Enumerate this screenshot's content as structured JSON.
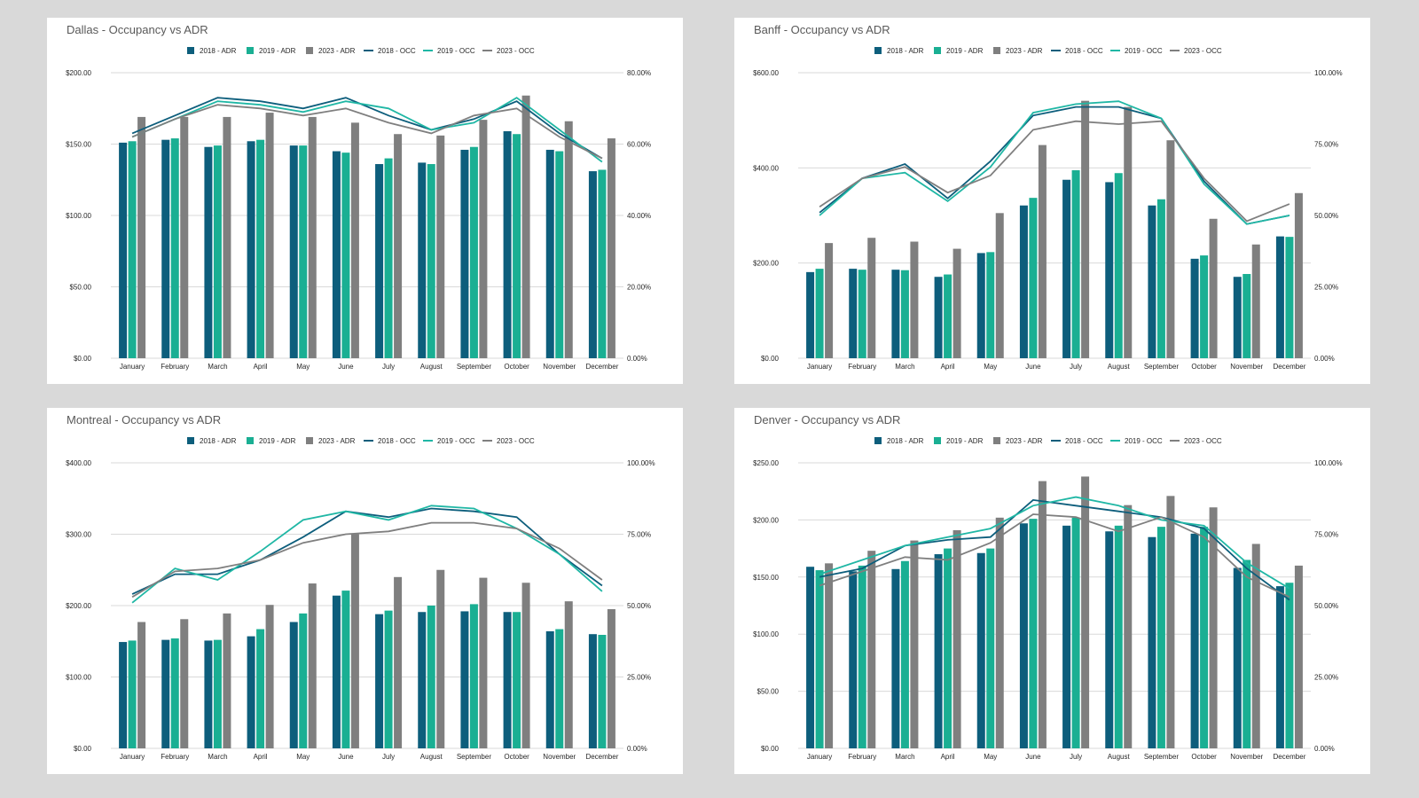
{
  "colors": {
    "adr_2018": "#0d5e7c",
    "adr_2019": "#1aaf93",
    "adr_2023": "#7f7f7f",
    "occ_2018": "#0d5e7c",
    "occ_2019": "#20b7a5",
    "occ_2023": "#7f7f7f",
    "gridline": "#d9d9d9"
  },
  "chart_data": [
    {
      "type": "bar",
      "title": "Dallas - Occupancy vs ADR",
      "categories": [
        "January",
        "February",
        "March",
        "April",
        "May",
        "June",
        "July",
        "August",
        "September",
        "October",
        "November",
        "December"
      ],
      "ylim": [
        0,
        200
      ],
      "y_ticks": [
        "$0.00",
        "$50.00",
        "$100.00",
        "$150.00",
        "$200.00"
      ],
      "y2lim": [
        0,
        80
      ],
      "y2_ticks": [
        "0.00%",
        "20.00%",
        "40.00%",
        "60.00%",
        "80.00%"
      ],
      "legend_position": "top",
      "grid": true,
      "series": [
        {
          "name": "2018 - ADR",
          "kind": "bar",
          "axis": "left",
          "values": [
            151,
            153,
            148,
            152,
            149,
            145,
            136,
            137,
            146,
            159,
            146,
            131
          ]
        },
        {
          "name": "2019 - ADR",
          "kind": "bar",
          "axis": "left",
          "values": [
            152,
            154,
            149,
            153,
            149,
            144,
            140,
            136,
            148,
            157,
            145,
            132
          ]
        },
        {
          "name": "2023 - ADR",
          "kind": "bar",
          "axis": "left",
          "values": [
            169,
            169,
            169,
            172,
            169,
            165,
            157,
            156,
            167,
            184,
            166,
            154
          ]
        },
        {
          "name": "2018 - OCC",
          "kind": "line",
          "axis": "right",
          "values": [
            63,
            68,
            73,
            72,
            70,
            73,
            68,
            64,
            67,
            72,
            63,
            56
          ]
        },
        {
          "name": "2019 - OCC",
          "kind": "line",
          "axis": "right",
          "values": [
            62,
            67,
            72,
            71,
            69,
            72,
            70,
            64,
            66,
            73,
            64,
            55
          ]
        },
        {
          "name": "2023 - OCC",
          "kind": "line",
          "axis": "right",
          "values": [
            62,
            67,
            71,
            70,
            68,
            70,
            66,
            63,
            68,
            70,
            62,
            56
          ]
        }
      ]
    },
    {
      "type": "bar",
      "title": "Banff - Occupancy vs ADR",
      "categories": [
        "January",
        "February",
        "March",
        "April",
        "May",
        "June",
        "July",
        "August",
        "September",
        "October",
        "November",
        "December"
      ],
      "ylim": [
        0,
        600
      ],
      "y_ticks": [
        "$0.00",
        "$200.00",
        "$400.00",
        "$600.00"
      ],
      "y2lim": [
        0,
        100
      ],
      "y2_ticks": [
        "0.00%",
        "25.00%",
        "50.00%",
        "75.00%",
        "100.00%"
      ],
      "legend_position": "top",
      "grid": true,
      "series": [
        {
          "name": "2018 - ADR",
          "kind": "bar",
          "axis": "left",
          "values": [
            181,
            188,
            186,
            171,
            221,
            321,
            375,
            370,
            321,
            209,
            171,
            256
          ]
        },
        {
          "name": "2019 - ADR",
          "kind": "bar",
          "axis": "left",
          "values": [
            188,
            186,
            185,
            176,
            223,
            337,
            395,
            389,
            334,
            216,
            177,
            255
          ]
        },
        {
          "name": "2023 - ADR",
          "kind": "bar",
          "axis": "left",
          "values": [
            242,
            253,
            245,
            230,
            305,
            448,
            541,
            528,
            458,
            293,
            239,
            347
          ]
        },
        {
          "name": "2018 - OCC",
          "kind": "line",
          "axis": "right",
          "values": [
            51,
            63,
            68,
            56,
            69,
            85,
            88,
            88,
            84,
            62,
            47,
            50
          ]
        },
        {
          "name": "2019 - OCC",
          "kind": "line",
          "axis": "right",
          "values": [
            50,
            63,
            65,
            55,
            67,
            86,
            89,
            90,
            84,
            61,
            47,
            50
          ]
        },
        {
          "name": "2023 - OCC",
          "kind": "line",
          "axis": "right",
          "values": [
            53,
            63,
            67,
            58,
            64,
            80,
            83,
            82,
            83,
            63,
            48,
            54
          ]
        }
      ]
    },
    {
      "type": "bar",
      "title": "Montreal - Occupancy vs ADR",
      "categories": [
        "January",
        "February",
        "March",
        "April",
        "May",
        "June",
        "July",
        "August",
        "September",
        "October",
        "November",
        "December"
      ],
      "ylim": [
        0,
        400
      ],
      "y_ticks": [
        "$0.00",
        "$100.00",
        "$200.00",
        "$300.00",
        "$400.00"
      ],
      "y2lim": [
        0,
        100
      ],
      "y2_ticks": [
        "0.00%",
        "25.00%",
        "50.00%",
        "75.00%",
        "100.00%"
      ],
      "legend_position": "top",
      "grid": true,
      "series": [
        {
          "name": "2018 - ADR",
          "kind": "bar",
          "axis": "left",
          "values": [
            149,
            152,
            151,
            157,
            177,
            214,
            188,
            191,
            192,
            191,
            164,
            160
          ]
        },
        {
          "name": "2019 - ADR",
          "kind": "bar",
          "axis": "left",
          "values": [
            151,
            154,
            152,
            167,
            189,
            221,
            193,
            200,
            202,
            191,
            167,
            159
          ]
        },
        {
          "name": "2023 - ADR",
          "kind": "bar",
          "axis": "left",
          "values": [
            177,
            181,
            189,
            201,
            231,
            300,
            240,
            250,
            239,
            232,
            206,
            195
          ]
        },
        {
          "name": "2018 - OCC",
          "kind": "line",
          "axis": "right",
          "values": [
            54,
            61,
            61,
            66,
            74,
            83,
            81,
            84,
            83,
            81,
            68,
            57
          ]
        },
        {
          "name": "2019 - OCC",
          "kind": "line",
          "axis": "right",
          "values": [
            51,
            63,
            59,
            69,
            80,
            83,
            80,
            85,
            84,
            77,
            68,
            55
          ]
        },
        {
          "name": "2023 - OCC",
          "kind": "line",
          "axis": "right",
          "values": [
            53,
            62,
            63,
            66,
            72,
            75,
            76,
            79,
            79,
            77,
            70,
            59
          ]
        }
      ]
    },
    {
      "type": "bar",
      "title": "Denver - Occupancy vs ADR",
      "categories": [
        "January",
        "February",
        "March",
        "April",
        "May",
        "June",
        "July",
        "August",
        "September",
        "October",
        "November",
        "December"
      ],
      "ylim": [
        0,
        250
      ],
      "y_ticks": [
        "$0.00",
        "$50.00",
        "$100.00",
        "$150.00",
        "$200.00",
        "$250.00"
      ],
      "y2lim": [
        0,
        100
      ],
      "y2_ticks": [
        "0.00%",
        "25.00%",
        "50.00%",
        "75.00%",
        "100.00%"
      ],
      "legend_position": "top",
      "grid": true,
      "series": [
        {
          "name": "2018 - ADR",
          "kind": "bar",
          "axis": "left",
          "values": [
            159,
            155,
            157,
            170,
            171,
            197,
            195,
            190,
            185,
            188,
            158,
            142
          ]
        },
        {
          "name": "2019 - ADR",
          "kind": "bar",
          "axis": "left",
          "values": [
            156,
            160,
            164,
            175,
            175,
            201,
            202,
            195,
            194,
            194,
            165,
            145
          ]
        },
        {
          "name": "2023 - ADR",
          "kind": "bar",
          "axis": "left",
          "values": [
            162,
            173,
            182,
            191,
            202,
            234,
            238,
            213,
            221,
            211,
            179,
            160
          ]
        },
        {
          "name": "2018 - OCC",
          "kind": "line",
          "axis": "right",
          "values": [
            60,
            63,
            71,
            73,
            74,
            87,
            85,
            83,
            81,
            77,
            63,
            52
          ]
        },
        {
          "name": "2019 - OCC",
          "kind": "line",
          "axis": "right",
          "values": [
            61,
            66,
            71,
            74,
            77,
            85,
            88,
            85,
            80,
            78,
            65,
            56
          ]
        },
        {
          "name": "2023 - OCC",
          "kind": "line",
          "axis": "right",
          "values": [
            57,
            62,
            67,
            66,
            72,
            82,
            81,
            76,
            81,
            74,
            60,
            53
          ]
        }
      ]
    }
  ]
}
